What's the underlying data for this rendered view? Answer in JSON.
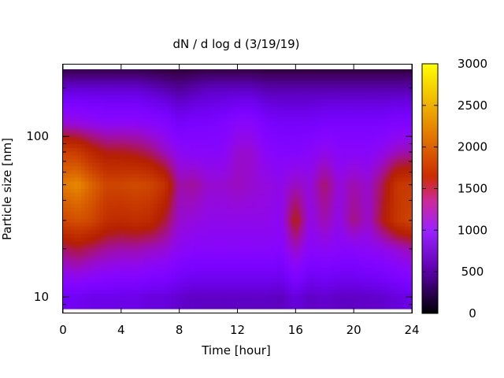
{
  "chart_data": {
    "type": "heatmap",
    "title": "dN / d log d (3/19/19)",
    "xlabel": "Time [hour]",
    "ylabel": "Particle size [nm]",
    "x_ticks": [
      "0",
      "4",
      "8",
      "12",
      "16",
      "20",
      "24"
    ],
    "y_ticks": [
      "10",
      "100"
    ],
    "y_scale": "log",
    "xlim": [
      0,
      24
    ],
    "ylim": [
      8,
      280
    ],
    "colorbar": {
      "min": 0,
      "max": 3000,
      "ticks": [
        "0",
        "500",
        "1000",
        "1500",
        "2000",
        "2500",
        "3000"
      ],
      "colormap": "gnuplot-rgbformulae-7-5-15",
      "colors": [
        "#000000",
        "#5b00aa",
        "#9a22ff",
        "#cc2a9a",
        "#cc2d00",
        "#e68a00",
        "#ffff00"
      ]
    },
    "series": [
      {
        "x": [
          0,
          1,
          2,
          3,
          4,
          5,
          6,
          7,
          8,
          9,
          10,
          11,
          12,
          13,
          14,
          15,
          16,
          17,
          18,
          19,
          20,
          21,
          22,
          23,
          24
        ],
        "values_at_size_nm": {
          "10": [
            600,
            600,
            550,
            550,
            550,
            550,
            500,
            500,
            450,
            420,
            420,
            420,
            420,
            420,
            420,
            400,
            500,
            420,
            450,
            420,
            420,
            430,
            450,
            500,
            550
          ],
          "20": [
            1300,
            1400,
            1300,
            1200,
            1150,
            1150,
            1100,
            1050,
            900,
            850,
            850,
            850,
            850,
            850,
            850,
            820,
            1100,
            850,
            900,
            850,
            850,
            900,
            950,
            1050,
            1150
          ],
          "30": [
            1950,
            2050,
            1950,
            1700,
            1650,
            1700,
            1650,
            1400,
            1050,
            1000,
            950,
            950,
            950,
            950,
            950,
            900,
            1500,
            950,
            1150,
            950,
            1250,
            1050,
            1450,
            1800,
            1950
          ],
          "50": [
            2350,
            2450,
            2200,
            1950,
            1950,
            2000,
            1950,
            1750,
            1150,
            1200,
            1050,
            1050,
            1100,
            1050,
            1000,
            950,
            1100,
            1000,
            1300,
            1000,
            1150,
            1050,
            1350,
            1800,
            1850
          ],
          "80": [
            1900,
            1850,
            1600,
            1450,
            1450,
            1400,
            1300,
            1100,
            900,
            850,
            850,
            850,
            1050,
            1050,
            850,
            800,
            800,
            850,
            950,
            850,
            850,
            850,
            950,
            1100,
            1150
          ],
          "120": [
            1050,
            1000,
            950,
            900,
            900,
            900,
            850,
            800,
            650,
            700,
            700,
            750,
            850,
            850,
            700,
            650,
            650,
            650,
            700,
            700,
            700,
            700,
            700,
            750,
            750
          ],
          "200": [
            450,
            450,
            450,
            450,
            450,
            450,
            400,
            350,
            300,
            350,
            400,
            400,
            400,
            400,
            350,
            350,
            350,
            350,
            350,
            350,
            350,
            350,
            350,
            350,
            350
          ],
          "280": [
            50,
            50,
            50,
            50,
            50,
            50,
            50,
            50,
            50,
            50,
            50,
            50,
            50,
            50,
            50,
            50,
            50,
            50,
            50,
            50,
            50,
            50,
            50,
            50,
            50
          ]
        }
      }
    ]
  }
}
